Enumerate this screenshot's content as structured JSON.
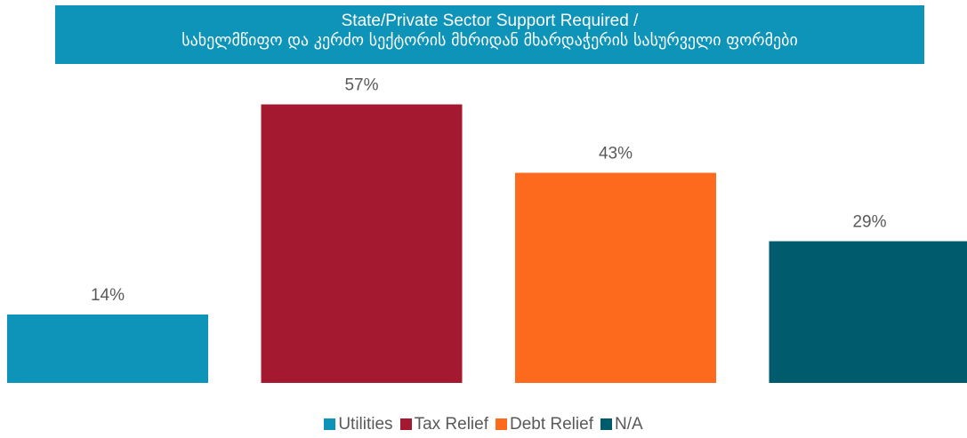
{
  "chart_data": {
    "type": "bar",
    "title_line1": "State/Private Sector Support Required /",
    "title_line2": "სახელმწიფო და კერძო სექტორის მხრიდან მხარდაჭერის სასურველი ფორმები",
    "categories": [
      "Utilities",
      "Tax Relief",
      "Debt Relief",
      "N/A"
    ],
    "values": [
      14,
      57,
      43,
      29
    ],
    "value_labels": [
      "14%",
      "57%",
      "43%",
      "29%"
    ],
    "colors": [
      "#0e94b8",
      "#a51930",
      "#fe6a1d",
      "#005b6c"
    ],
    "ylim": [
      0,
      60
    ],
    "legend_position": "bottom",
    "grid": false,
    "title_background": "#0e94b8"
  }
}
